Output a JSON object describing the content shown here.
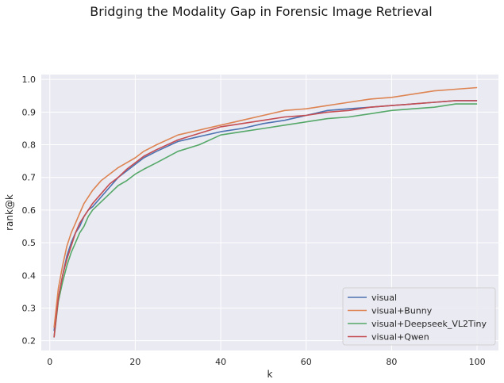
{
  "chart_data": {
    "type": "line",
    "title": "Bridging the Modality Gap in Forensic Image Retrieval",
    "xlabel": "k",
    "ylabel": "rank@k",
    "xlim": [
      -2,
      105
    ],
    "ylim": [
      0.17,
      1.015
    ],
    "xticks": [
      0,
      20,
      40,
      60,
      80,
      100
    ],
    "yticks": [
      0.2,
      0.3,
      0.4,
      0.5,
      0.6,
      0.7,
      0.8,
      0.9,
      1.0
    ],
    "ytick_labels": [
      "0.2",
      "0.3",
      "0.4",
      "0.5",
      "0.6",
      "0.7",
      "0.8",
      "0.9",
      "1.0"
    ],
    "grid": true,
    "legend_position": "lower right",
    "series": [
      {
        "name": "visual",
        "color": "#4c72b0",
        "x": [
          1,
          2,
          3,
          4,
          5,
          6,
          7,
          8,
          9,
          10,
          12,
          14,
          16,
          18,
          20,
          22,
          25,
          30,
          35,
          40,
          45,
          50,
          55,
          60,
          65,
          70,
          75,
          80,
          85,
          90,
          95,
          100
        ],
        "y": [
          0.23,
          0.33,
          0.4,
          0.46,
          0.5,
          0.53,
          0.55,
          0.58,
          0.6,
          0.61,
          0.64,
          0.67,
          0.7,
          0.72,
          0.74,
          0.76,
          0.78,
          0.81,
          0.825,
          0.84,
          0.85,
          0.865,
          0.875,
          0.89,
          0.905,
          0.91,
          0.915,
          0.92,
          0.925,
          0.93,
          0.935,
          0.935
        ]
      },
      {
        "name": "visual+Bunny",
        "color": "#dd8452",
        "x": [
          1,
          2,
          3,
          4,
          5,
          6,
          7,
          8,
          9,
          10,
          12,
          14,
          16,
          18,
          20,
          22,
          25,
          30,
          35,
          40,
          45,
          50,
          55,
          60,
          65,
          70,
          75,
          80,
          85,
          90,
          95,
          100
        ],
        "y": [
          0.24,
          0.36,
          0.43,
          0.49,
          0.53,
          0.56,
          0.59,
          0.62,
          0.64,
          0.66,
          0.69,
          0.71,
          0.73,
          0.745,
          0.76,
          0.78,
          0.8,
          0.83,
          0.845,
          0.86,
          0.875,
          0.89,
          0.905,
          0.91,
          0.92,
          0.93,
          0.94,
          0.945,
          0.955,
          0.965,
          0.97,
          0.975
        ]
      },
      {
        "name": "visual+Deepseek_VL2Tiny",
        "color": "#55a868",
        "x": [
          1,
          2,
          3,
          4,
          5,
          6,
          7,
          8,
          9,
          10,
          12,
          14,
          16,
          18,
          20,
          22,
          25,
          30,
          35,
          40,
          45,
          50,
          55,
          60,
          65,
          70,
          75,
          80,
          85,
          90,
          95,
          100
        ],
        "y": [
          0.21,
          0.32,
          0.38,
          0.43,
          0.47,
          0.5,
          0.53,
          0.55,
          0.58,
          0.6,
          0.625,
          0.65,
          0.675,
          0.69,
          0.71,
          0.725,
          0.745,
          0.78,
          0.8,
          0.83,
          0.84,
          0.85,
          0.86,
          0.87,
          0.88,
          0.885,
          0.895,
          0.905,
          0.91,
          0.915,
          0.925,
          0.925
        ]
      },
      {
        "name": "visual+Qwen",
        "color": "#c44e52",
        "x": [
          1,
          2,
          3,
          4,
          5,
          6,
          7,
          8,
          9,
          10,
          12,
          14,
          16,
          18,
          20,
          22,
          25,
          30,
          35,
          40,
          45,
          50,
          55,
          60,
          65,
          70,
          75,
          80,
          85,
          90,
          95,
          100
        ],
        "y": [
          0.21,
          0.33,
          0.4,
          0.45,
          0.49,
          0.53,
          0.56,
          0.58,
          0.6,
          0.62,
          0.65,
          0.68,
          0.7,
          0.725,
          0.745,
          0.765,
          0.785,
          0.815,
          0.835,
          0.855,
          0.865,
          0.875,
          0.885,
          0.89,
          0.9,
          0.905,
          0.915,
          0.92,
          0.925,
          0.93,
          0.935,
          0.935
        ]
      }
    ]
  }
}
